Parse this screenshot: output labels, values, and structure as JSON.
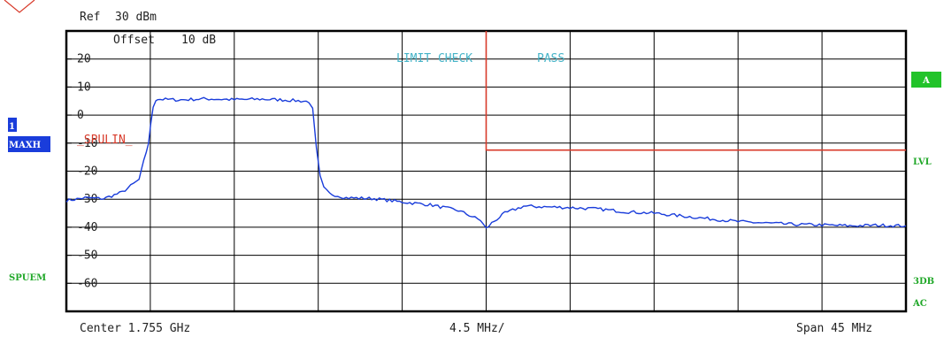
{
  "header": {
    "ref_label": "Ref",
    "ref_value": "30 dBm",
    "offset_label": "Offset",
    "offset_value": "10 dB"
  },
  "annotations": {
    "limit_check": "LIMIT CHECK",
    "limit_result": "PASS",
    "limit_line_name": "_SPULIN_"
  },
  "left_labels": {
    "trace_number": "1",
    "trace_mode": "MAXH",
    "measurement": "SPUEM"
  },
  "right_labels": {
    "trace_a": "A",
    "lvl": "LVL",
    "bw": "3DB",
    "coupling": "AC"
  },
  "footer": {
    "center": "Center 1.755 GHz",
    "per_div": "4.5 MHz/",
    "span": "Span 45 MHz"
  },
  "colors": {
    "trace": "#1a3ddb",
    "limit": "#d83a2a",
    "grid": "#000000",
    "badge_blue": "#1a3ddb",
    "badge_green": "#22c32a",
    "label_green": "#22a82a",
    "annotation_cyan": "#46b4c8"
  },
  "chart_data": {
    "type": "line",
    "xlabel": "",
    "ylabel": "",
    "x_unit": "MHz offset from center",
    "xlim": [
      -22.5,
      22.5
    ],
    "ylim": [
      -70,
      30
    ],
    "y_ticks": [
      20,
      10,
      0,
      -10,
      -20,
      -30,
      -40,
      -50,
      -60
    ],
    "y_tick_labels": [
      "20",
      "10",
      "0",
      "-10",
      "-20",
      "-30",
      "-40",
      "-50",
      "-60"
    ],
    "grid": true,
    "series": [
      {
        "name": "1",
        "x": [
          -22.5,
          -21.5,
          -20.5,
          -19.5,
          -18.6,
          -18.1,
          -17.85,
          -17.7,
          -17.6,
          -16.5,
          -15.0,
          -13.5,
          -12.0,
          -10.5,
          -9.5,
          -9.3,
          -9.1,
          -8.9,
          -8.7,
          -8.4,
          -7.5,
          -6.0,
          -4.5,
          -3.0,
          -1.5,
          -0.3,
          0.0,
          0.3,
          1.0,
          2.0,
          4.5,
          6.0,
          7.5,
          9.0,
          10.5,
          12.0,
          13.5,
          15.0,
          16.5,
          18.0,
          19.5,
          21.0,
          22.5
        ],
        "y": [
          -30.5,
          -29.5,
          -29.8,
          -27.5,
          -23.0,
          -10.0,
          3.0,
          5.5,
          5.7,
          5.4,
          5.8,
          5.5,
          5.7,
          5.3,
          4.8,
          2.0,
          -12.0,
          -22.0,
          -26.0,
          -28.0,
          -29.5,
          -29.8,
          -31.0,
          -32.0,
          -34.0,
          -37.5,
          -40.5,
          -38.5,
          -35.0,
          -32.5,
          -33.0,
          -33.5,
          -34.5,
          -35.0,
          -36.0,
          -37.0,
          -38.0,
          -38.5,
          -39.0,
          -39.2,
          -39.5,
          -39.3,
          -39.5
        ]
      }
    ],
    "limit_lines": [
      {
        "name": "_SPULIN_",
        "x": [
          0.0,
          0.0,
          22.5
        ],
        "y": [
          30.0,
          -12.5,
          -12.5
        ]
      }
    ]
  }
}
